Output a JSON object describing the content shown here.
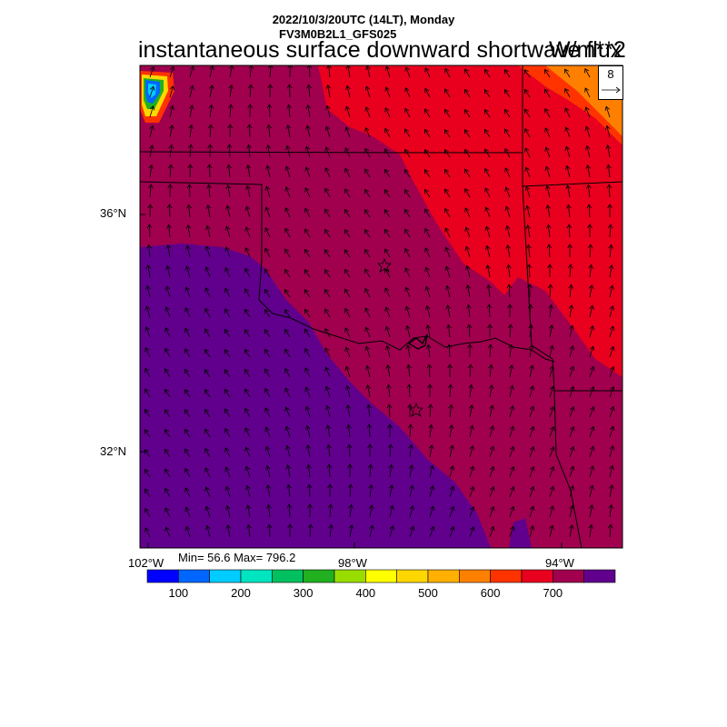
{
  "header": {
    "line1": "2022/10/3/20UTC (14LT), Monday",
    "line2": "FV3M0B2L1_GFS025",
    "title": "instantaneous surface downward shortwave flux",
    "units": "W/m**2"
  },
  "axes": {
    "lat_labels": [
      "36°N",
      "32°N"
    ],
    "lon_labels": [
      "102°W",
      "98°W",
      "94°W"
    ]
  },
  "stats": {
    "text": "Min= 56.6 Max= 796.2"
  },
  "vector_reference": {
    "value": "8"
  },
  "colorbar": {
    "labels": [
      "100",
      "200",
      "300",
      "400",
      "500",
      "600",
      "700"
    ],
    "colors": [
      "#0000ff",
      "#0066ff",
      "#00ccff",
      "#00e5c0",
      "#00c060",
      "#20b020",
      "#99dd00",
      "#ffff00",
      "#ffd700",
      "#ffb000",
      "#ff8000",
      "#ff3300",
      "#e8001e",
      "#a0004e",
      "#60008c"
    ]
  },
  "map": {
    "field_colors": {
      "low": "#60008c",
      "mid": "#a0004e",
      "high": "#e8001e",
      "higher": "#ff3300",
      "peak": "#ff8000"
    },
    "stations": [
      "star-north",
      "star-south"
    ]
  }
}
